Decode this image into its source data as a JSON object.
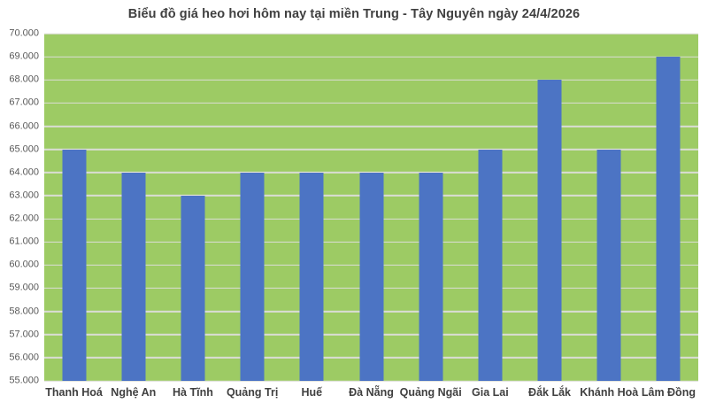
{
  "chart_data": {
    "type": "bar",
    "title": "Biểu đồ giá heo hơi hôm nay tại miền Trung - Tây Nguyên ngày 24/4/2026",
    "categories": [
      "Thanh Hoá",
      "Nghệ An",
      "Hà Tĩnh",
      "Quảng Trị",
      "Huế",
      "Đà Nẵng",
      "Quảng Ngãi",
      "Gia Lai",
      "Đắk Lắk",
      "Khánh Hoà",
      "Lâm Đồng"
    ],
    "values": [
      65000,
      64000,
      63000,
      64000,
      64000,
      64000,
      64000,
      65000,
      68000,
      65000,
      69000
    ],
    "xlabel": "",
    "ylabel": "",
    "ylim": [
      55000,
      70000
    ],
    "ytick_step": 1000,
    "ytick_labels": [
      "55.000",
      "56.000",
      "57.000",
      "58.000",
      "59.000",
      "60.000",
      "61.000",
      "62.000",
      "63.000",
      "64.000",
      "65.000",
      "66.000",
      "67.000",
      "68.000",
      "69.000",
      "70.000"
    ],
    "grid": "horizontal",
    "legend": "none",
    "colors": {
      "bar": "#4C74C4",
      "plot_background": "#9DCB64",
      "gridline": "#DBDDD6",
      "title_text": "#404040",
      "ytick_text": "#595959",
      "xtick_text": "#404040",
      "page_background": "#FFFFFF"
    }
  }
}
